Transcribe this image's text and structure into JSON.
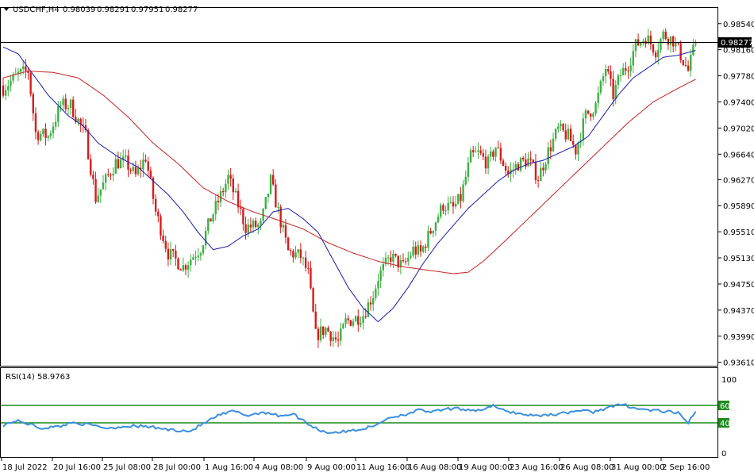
{
  "colors": {
    "bull": "#3cb043",
    "bear": "#d91a1a",
    "ma_fast": "#1a1ab5",
    "ma_slow": "#cc2222",
    "rsi": "#3a8fe0",
    "rsi_level": "#1e8c1e",
    "price_label_bg": "#000000",
    "price_label_fg": "#ffffff"
  },
  "header": {
    "symbol": "USDCHF,H4",
    "open": "0.98039",
    "high": "0.98291",
    "low": "0.97951",
    "close": "0.98277"
  },
  "rsi_panel": {
    "label": "RSI(14) 58.9763",
    "levels": [
      "60",
      "40"
    ],
    "axis_labels": [
      "100",
      "0"
    ]
  },
  "price_axis": {
    "ticks": [
      "0.98540",
      "0.98160",
      "0.97780",
      "0.97400",
      "0.97020",
      "0.96640",
      "0.96270",
      "0.95890",
      "0.95510",
      "0.95130",
      "0.94750",
      "0.94370",
      "0.93990",
      "0.93610"
    ],
    "current_price": "0.98277"
  },
  "time_axis": {
    "labels": [
      "18 Jul 2022",
      "20 Jul 16:00",
      "25 Jul 08:00",
      "28 Jul 00:00",
      "1 Aug 16:00",
      "4 Aug 08:00",
      "9 Aug 00:00",
      "11 Aug 16:00",
      "16 Aug 08:00",
      "19 Aug 00:00",
      "23 Aug 16:00",
      "26 Aug 08:00",
      "31 Aug 00:00",
      "2 Sep 16:00"
    ]
  },
  "chart_data": {
    "type": "candlestick",
    "title": "USDCHF,H4",
    "ylim": [
      0.9356,
      0.9878
    ],
    "close_path": [
      [
        0,
        0.976
      ],
      [
        6,
        0.978
      ],
      [
        10,
        0.9785
      ],
      [
        13,
        0.9695
      ],
      [
        18,
        0.969
      ],
      [
        23,
        0.9735
      ],
      [
        27,
        0.9735
      ],
      [
        33,
        0.969
      ],
      [
        37,
        0.96
      ],
      [
        45,
        0.9652
      ],
      [
        49,
        0.9652
      ],
      [
        53,
        0.9632
      ],
      [
        57,
        0.966
      ],
      [
        61,
        0.958
      ],
      [
        66,
        0.952
      ],
      [
        72,
        0.95
      ],
      [
        79,
        0.9528
      ],
      [
        83,
        0.957
      ],
      [
        88,
        0.9612
      ],
      [
        90,
        0.963
      ],
      [
        94,
        0.959
      ],
      [
        97,
        0.9558
      ],
      [
        103,
        0.956
      ],
      [
        107,
        0.9625
      ],
      [
        110,
        0.958
      ],
      [
        114,
        0.9522
      ],
      [
        119,
        0.9515
      ],
      [
        122,
        0.949
      ],
      [
        125,
        0.94
      ],
      [
        129,
        0.941
      ],
      [
        134,
        0.939
      ],
      [
        137,
        0.942
      ],
      [
        141,
        0.9425
      ],
      [
        144,
        0.943
      ],
      [
        148,
        0.946
      ],
      [
        150,
        0.9485
      ],
      [
        155,
        0.9515
      ],
      [
        160,
        0.95
      ],
      [
        164,
        0.9525
      ],
      [
        167,
        0.952
      ],
      [
        172,
        0.956
      ],
      [
        176,
        0.959
      ],
      [
        180,
        0.9585
      ],
      [
        183,
        0.96
      ],
      [
        187,
        0.966
      ],
      [
        190,
        0.9665
      ],
      [
        194,
        0.965
      ],
      [
        197,
        0.9675
      ],
      [
        202,
        0.9635
      ],
      [
        206,
        0.965
      ],
      [
        210,
        0.9655
      ],
      [
        214,
        0.963
      ],
      [
        218,
        0.9668
      ],
      [
        222,
        0.97
      ],
      [
        226,
        0.969
      ],
      [
        229,
        0.967
      ],
      [
        233,
        0.972
      ],
      [
        237,
        0.9735
      ],
      [
        241,
        0.979
      ],
      [
        244,
        0.975
      ],
      [
        247,
        0.978
      ],
      [
        250,
        0.9795
      ],
      [
        253,
        0.9822
      ],
      [
        257,
        0.9835
      ],
      [
        261,
        0.9815
      ],
      [
        264,
        0.9838
      ],
      [
        268,
        0.983
      ],
      [
        271,
        0.9808
      ],
      [
        274,
        0.9785
      ],
      [
        277,
        0.9828
      ]
    ],
    "ma_fast_path": [
      [
        0,
        0.982
      ],
      [
        6,
        0.981
      ],
      [
        12,
        0.978
      ],
      [
        18,
        0.975
      ],
      [
        26,
        0.972
      ],
      [
        32,
        0.9705
      ],
      [
        38,
        0.968
      ],
      [
        46,
        0.966
      ],
      [
        54,
        0.9645
      ],
      [
        60,
        0.9625
      ],
      [
        66,
        0.9605
      ],
      [
        72,
        0.958
      ],
      [
        78,
        0.955
      ],
      [
        84,
        0.9525
      ],
      [
        90,
        0.953
      ],
      [
        96,
        0.9545
      ],
      [
        102,
        0.9555
      ],
      [
        108,
        0.958
      ],
      [
        114,
        0.9585
      ],
      [
        120,
        0.957
      ],
      [
        126,
        0.955
      ],
      [
        132,
        0.951
      ],
      [
        138,
        0.947
      ],
      [
        144,
        0.944
      ],
      [
        150,
        0.942
      ],
      [
        156,
        0.944
      ],
      [
        162,
        0.947
      ],
      [
        168,
        0.9505
      ],
      [
        174,
        0.9535
      ],
      [
        180,
        0.956
      ],
      [
        186,
        0.9585
      ],
      [
        192,
        0.9605
      ],
      [
        198,
        0.9625
      ],
      [
        204,
        0.964
      ],
      [
        210,
        0.965
      ],
      [
        216,
        0.9655
      ],
      [
        222,
        0.9665
      ],
      [
        228,
        0.9675
      ],
      [
        234,
        0.969
      ],
      [
        240,
        0.972
      ],
      [
        246,
        0.975
      ],
      [
        252,
        0.9775
      ],
      [
        258,
        0.979
      ],
      [
        264,
        0.9805
      ],
      [
        270,
        0.9808
      ],
      [
        277,
        0.9815
      ]
    ],
    "ma_slow_path": [
      [
        0,
        0.9775
      ],
      [
        10,
        0.9785
      ],
      [
        20,
        0.9783
      ],
      [
        30,
        0.9775
      ],
      [
        40,
        0.975
      ],
      [
        50,
        0.9718
      ],
      [
        60,
        0.968
      ],
      [
        70,
        0.965
      ],
      [
        80,
        0.9615
      ],
      [
        90,
        0.9595
      ],
      [
        100,
        0.958
      ],
      [
        110,
        0.9568
      ],
      [
        120,
        0.9555
      ],
      [
        130,
        0.9535
      ],
      [
        140,
        0.952
      ],
      [
        150,
        0.9508
      ],
      [
        160,
        0.95
      ],
      [
        170,
        0.9495
      ],
      [
        180,
        0.949
      ],
      [
        186,
        0.9492
      ],
      [
        192,
        0.9508
      ],
      [
        200,
        0.9535
      ],
      [
        210,
        0.957
      ],
      [
        220,
        0.9605
      ],
      [
        230,
        0.964
      ],
      [
        240,
        0.9675
      ],
      [
        250,
        0.971
      ],
      [
        260,
        0.974
      ],
      [
        270,
        0.976
      ],
      [
        277,
        0.9773
      ]
    ],
    "rsi_path": [
      [
        0,
        42
      ],
      [
        5,
        48
      ],
      [
        10,
        44
      ],
      [
        15,
        38
      ],
      [
        22,
        40
      ],
      [
        28,
        46
      ],
      [
        35,
        42
      ],
      [
        42,
        38
      ],
      [
        50,
        41
      ],
      [
        58,
        40
      ],
      [
        66,
        36
      ],
      [
        75,
        34
      ],
      [
        80,
        44
      ],
      [
        86,
        55
      ],
      [
        92,
        61
      ],
      [
        98,
        55
      ],
      [
        104,
        60
      ],
      [
        110,
        55
      ],
      [
        116,
        57
      ],
      [
        122,
        44
      ],
      [
        126,
        36
      ],
      [
        130,
        32
      ],
      [
        136,
        33
      ],
      [
        142,
        36
      ],
      [
        148,
        40
      ],
      [
        154,
        52
      ],
      [
        160,
        56
      ],
      [
        166,
        62
      ],
      [
        172,
        60
      ],
      [
        178,
        64
      ],
      [
        184,
        64
      ],
      [
        190,
        62
      ],
      [
        196,
        68
      ],
      [
        200,
        62
      ],
      [
        206,
        58
      ],
      [
        212,
        55
      ],
      [
        218,
        56
      ],
      [
        224,
        58
      ],
      [
        230,
        62
      ],
      [
        236,
        60
      ],
      [
        242,
        66
      ],
      [
        248,
        70
      ],
      [
        254,
        64
      ],
      [
        260,
        62
      ],
      [
        266,
        60
      ],
      [
        270,
        58
      ],
      [
        274,
        46
      ],
      [
        277,
        59
      ]
    ],
    "rsi_ylim": [
      0,
      100
    ]
  }
}
